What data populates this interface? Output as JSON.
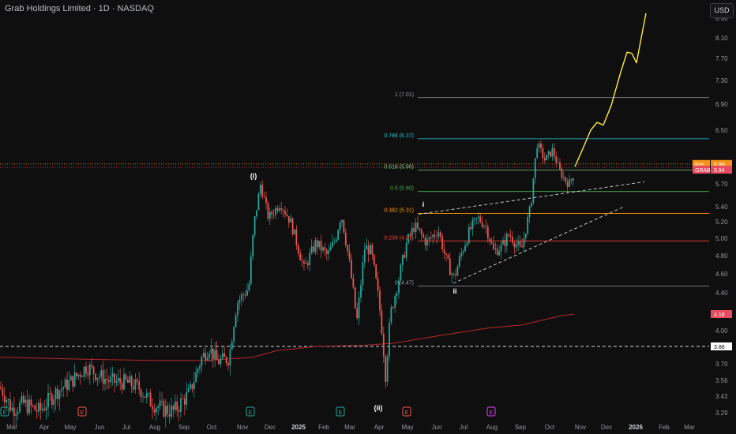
{
  "title": "Grab Holdings Limited · 1D · NASDAQ",
  "currency_button": "USD",
  "chart_data": {
    "type": "candlestick",
    "symbol": "GRAB",
    "y_ticks": [
      "3.29",
      "3.42",
      "3.56",
      "3.70",
      "3.86",
      "4.00",
      "4.18",
      "4.40",
      "4.60",
      "4.80",
      "5.00",
      "5.20",
      "5.40",
      "5.70",
      "5.94",
      "5.99",
      "6.50",
      "6.90",
      "7.30",
      "7.70",
      "8.10",
      "8.50"
    ],
    "x_ticks": [
      "Mar",
      "Apr",
      "May",
      "Jun",
      "Jul",
      "Aug",
      "Sep",
      "Oct",
      "Nov",
      "Dec",
      "2025",
      "Feb",
      "Mar",
      "Apr",
      "May",
      "Jun",
      "Jul",
      "Aug",
      "Sep",
      "Oct",
      "Nov",
      "Dec",
      "2026",
      "Feb",
      "Mar"
    ],
    "fib_levels": [
      {
        "label": "1 (7.01)",
        "value": 7.01,
        "color": "#9598a1"
      },
      {
        "label": "0.786 (6.37)",
        "value": 6.37,
        "color": "#26c6da"
      },
      {
        "label": "0.618 (5.90)",
        "value": 5.9,
        "color": "#81c784"
      },
      {
        "label": "0.5 (5.60)",
        "value": 5.6,
        "color": "#4caf50"
      },
      {
        "label": "0.382 (5.31)",
        "value": 5.31,
        "color": "#ff9800"
      },
      {
        "label": "0.236 (4.97)",
        "value": 4.97,
        "color": "#f44336"
      },
      {
        "label": "0 (4.47)",
        "value": 4.47,
        "color": "#9598a1"
      }
    ],
    "wave_labels": [
      "(i)",
      "(ii)",
      "i",
      "ii"
    ],
    "price_badges": [
      {
        "tag": "Pre",
        "value": "5.99",
        "color": "#f7931a"
      },
      {
        "tag": "GRAB",
        "value": "5.94",
        "color": "#e84a5f"
      },
      {
        "tag": "",
        "value": "4.18",
        "color": "#e84a5f"
      },
      {
        "tag": "",
        "value": "3.86",
        "color": "#ffffff"
      }
    ],
    "event_markers": [
      "E",
      "E",
      "E",
      "E",
      "E",
      "E"
    ],
    "horizontal_line": 3.86,
    "moving_average_last": 4.18,
    "colors": {
      "up": "#26a69a",
      "down": "#ef5350",
      "projection": "#ffeb3b",
      "ma": "#b5282d"
    }
  }
}
